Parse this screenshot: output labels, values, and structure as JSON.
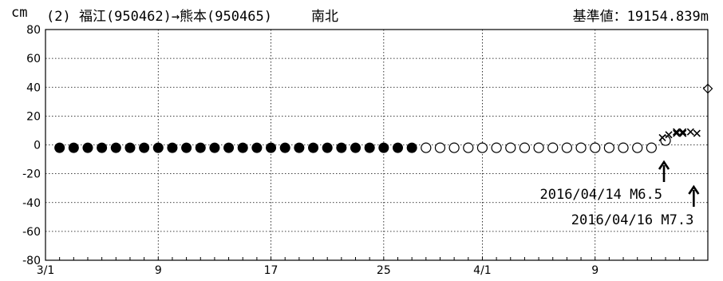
{
  "header": {
    "unit": "cm",
    "title": "(2) 福江(950462)→熊本(950465)",
    "direction": "南北",
    "baseline": "基準値：19154.839m"
  },
  "colors": {
    "axis": "#000000",
    "grid": "#000000",
    "marker": "#000000"
  },
  "chart_data": {
    "type": "scatter",
    "title": "(2) 福江(950462)→熊本(950465)",
    "ylabel": "cm",
    "ylim": [
      -80,
      80
    ],
    "xlim": [
      "2016-03-01",
      "2016-04-17"
    ],
    "yticks": [
      80,
      60,
      40,
      20,
      0,
      -20,
      -40,
      -60,
      -80
    ],
    "xticks": [
      {
        "date": "2016-03-01",
        "label": "3/1"
      },
      {
        "date": "2016-03-09",
        "label": "9"
      },
      {
        "date": "2016-03-17",
        "label": "17"
      },
      {
        "date": "2016-03-25",
        "label": "25"
      },
      {
        "date": "2016-04-01",
        "label": "4/1"
      },
      {
        "date": "2016-04-09",
        "label": "9"
      }
    ],
    "grid": true,
    "series": [
      {
        "marker": "filled-circle",
        "x": [
          "2016-03-02",
          "2016-03-03",
          "2016-03-04",
          "2016-03-05",
          "2016-03-06",
          "2016-03-07",
          "2016-03-08",
          "2016-03-09",
          "2016-03-10",
          "2016-03-11",
          "2016-03-12",
          "2016-03-13",
          "2016-03-14",
          "2016-03-15",
          "2016-03-16",
          "2016-03-17",
          "2016-03-18",
          "2016-03-19",
          "2016-03-20",
          "2016-03-21",
          "2016-03-22",
          "2016-03-23",
          "2016-03-24",
          "2016-03-25",
          "2016-03-26",
          "2016-03-27"
        ],
        "y": [
          -2,
          -2,
          -2,
          -2,
          -2,
          -2,
          -2,
          -2,
          -2,
          -2,
          -2,
          -2,
          -2,
          -2,
          -2,
          -2,
          -2,
          -2,
          -2,
          -2,
          -2,
          -2,
          -2,
          -2,
          -2,
          -2
        ]
      },
      {
        "marker": "open-circle",
        "x": [
          "2016-03-28",
          "2016-03-29",
          "2016-03-30",
          "2016-03-31",
          "2016-04-01",
          "2016-04-02",
          "2016-04-03",
          "2016-04-04",
          "2016-04-05",
          "2016-04-06",
          "2016-04-07",
          "2016-04-08",
          "2016-04-09",
          "2016-04-10",
          "2016-04-11",
          "2016-04-12",
          "2016-04-13",
          "2016-04-14"
        ],
        "y": [
          -2,
          -2,
          -2,
          -2,
          -2,
          -2,
          -2,
          -2,
          -2,
          -2,
          -2,
          -2,
          -2,
          -2,
          -2,
          -2,
          -2,
          3
        ]
      },
      {
        "marker": "x",
        "x": [
          "2016-04-14",
          "2016-04-14",
          "2016-04-15",
          "2016-04-15",
          "2016-04-15",
          "2016-04-15",
          "2016-04-15",
          "2016-04-15",
          "2016-04-16",
          "2016-04-16"
        ],
        "y": [
          5,
          7,
          8,
          9,
          9,
          8,
          9,
          8,
          9,
          8
        ]
      },
      {
        "marker": "diamond",
        "x": [
          "2016-04-17"
        ],
        "y": [
          39
        ]
      }
    ],
    "annotations": [
      {
        "text": "2016/04/14 M6.5",
        "date": "2016-04-14"
      },
      {
        "text": "2016/04/16 M7.3",
        "date": "2016-04-16"
      }
    ]
  }
}
